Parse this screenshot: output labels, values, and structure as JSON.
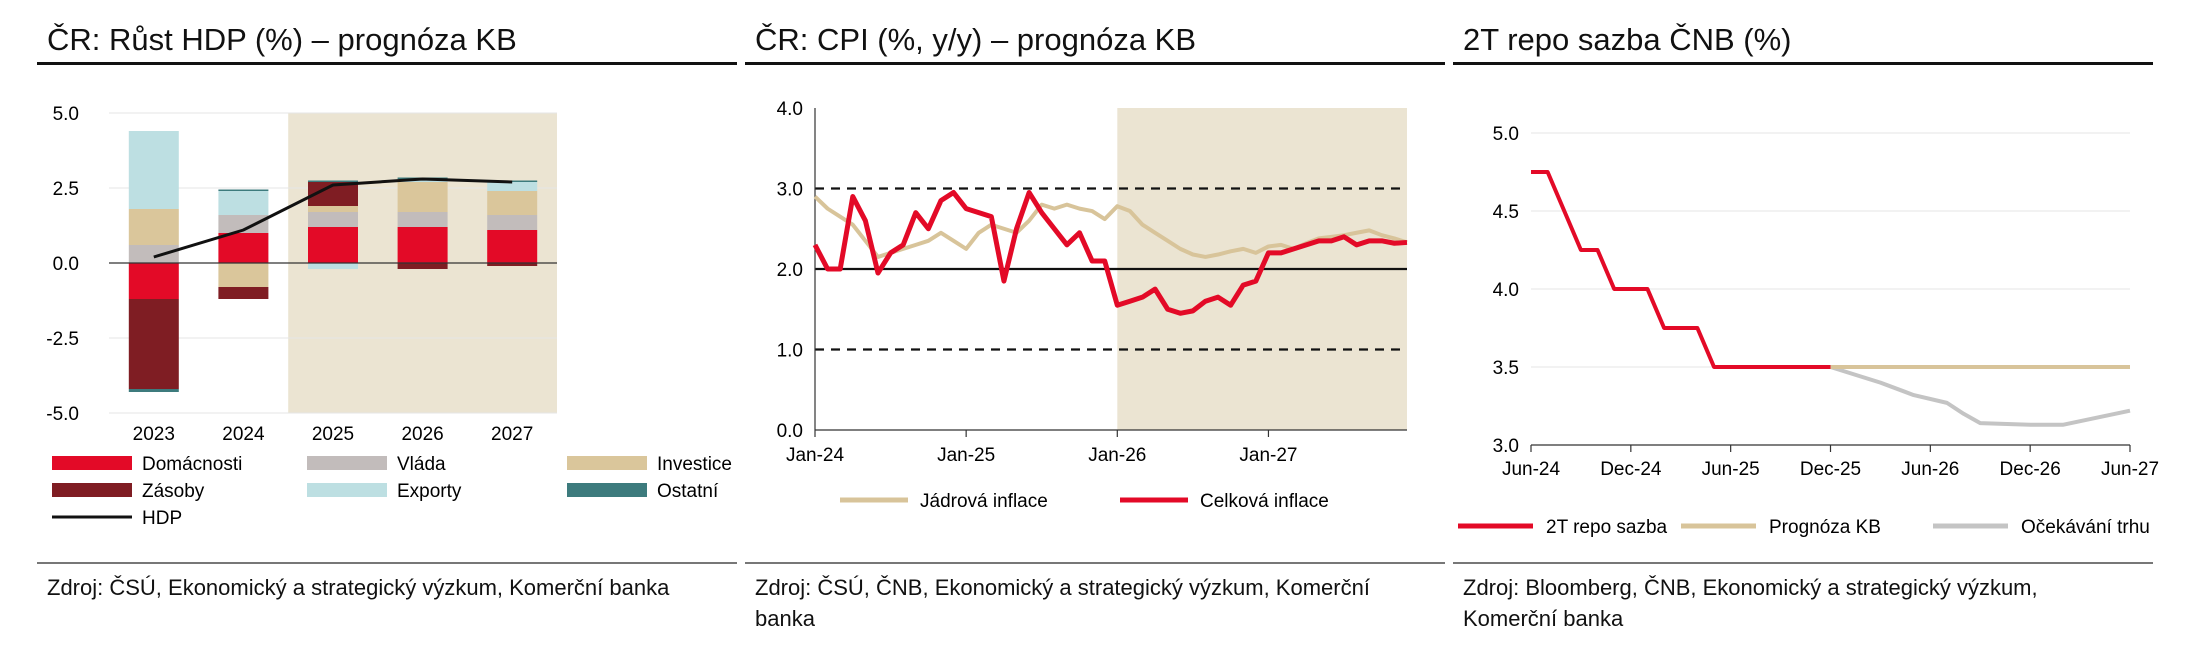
{
  "charts": [
    {
      "title": "ČR: Růst HDP (%) – prognóza KB",
      "source": "Zdroj: ČSÚ, Ekonomický a strategický výzkum, Komerční banka"
    },
    {
      "title": "ČR: CPI (%, y/y) – prognóza KB",
      "source": "Zdroj: ČSÚ, ČNB, Ekonomický a strategický výzkum, Komerční banka"
    },
    {
      "title": "2T repo sazba ČNB (%)",
      "source": "Zdroj: Bloomberg, ČNB, Ekonomický a strategický výzkum, Komerční banka"
    }
  ],
  "colors": {
    "domacnosti": "#e30a27",
    "vlada": "#c2bcbb",
    "investice": "#dac69b",
    "zasoby": "#7f1d23",
    "exporty": "#bddfe2",
    "ostatni": "#3d7b7d",
    "hdp": "#111111",
    "core": "#d8c49a",
    "headline": "#e30a27",
    "repo": "#e30a27",
    "forecast": "#d8c49a",
    "market": "#c4c4c4",
    "shade": "#ebe4d2"
  },
  "chart_data": [
    {
      "type": "bar",
      "stacked": true,
      "title": "ČR: Růst HDP (%) – prognóza KB",
      "categories": [
        "2023",
        "2024",
        "2025",
        "2026",
        "2027"
      ],
      "ylim": [
        -5.0,
        5.0
      ],
      "yticks": [
        "5.0",
        "2.5",
        "0.0",
        "-2.5",
        "-5.0"
      ],
      "shaded_from_category": "2025",
      "series": [
        {
          "name": "Domácnosti",
          "key": "domacnosti",
          "values": [
            -1.2,
            1.0,
            1.2,
            1.2,
            1.1
          ]
        },
        {
          "name": "Vláda",
          "key": "vlada",
          "values": [
            0.6,
            0.6,
            0.5,
            0.5,
            0.5
          ]
        },
        {
          "name": "Investice",
          "key": "investice",
          "values": [
            1.2,
            -0.8,
            0.2,
            1.0,
            0.8
          ]
        },
        {
          "name": "Zásoby",
          "key": "zasoby",
          "values": [
            -3.0,
            -0.4,
            0.8,
            -0.2,
            -0.1
          ]
        },
        {
          "name": "Exporty",
          "key": "exporty",
          "values": [
            2.6,
            0.8,
            -0.2,
            0.1,
            0.3
          ]
        },
        {
          "name": "Ostatní",
          "key": "ostatni",
          "values": [
            -0.1,
            0.05,
            0.05,
            0.05,
            0.05
          ]
        }
      ],
      "line": {
        "name": "HDP",
        "key": "hdp",
        "values": [
          0.2,
          1.1,
          2.6,
          2.8,
          2.7
        ]
      },
      "legend": [
        "Domácnosti",
        "Vláda",
        "Investice",
        "Zásoby",
        "Exporty",
        "Ostatní",
        "HDP"
      ]
    },
    {
      "type": "line",
      "title": "ČR: CPI (%, y/y) – prognóza KB",
      "ylim": [
        0.0,
        4.0
      ],
      "yticks": [
        "4.0",
        "3.0",
        "2.0",
        "1.0",
        "0.0"
      ],
      "x_ticks": [
        "Jan-24",
        "Jan-25",
        "Jan-26",
        "Jan-27"
      ],
      "x_start": "Jan-24",
      "x_end": "Dec-27",
      "shaded_from": "Jan-26",
      "reference_lines": [
        {
          "y": 3.0,
          "style": "dashed"
        },
        {
          "y": 2.0,
          "style": "solid"
        },
        {
          "y": 1.0,
          "style": "dashed"
        }
      ],
      "series": [
        {
          "name": "Jádrová inflace",
          "key": "core",
          "values": [
            2.9,
            2.75,
            2.65,
            2.55,
            2.35,
            2.15,
            2.2,
            2.25,
            2.3,
            2.35,
            2.45,
            2.35,
            2.25,
            2.45,
            2.55,
            2.5,
            2.45,
            2.6,
            2.8,
            2.75,
            2.8,
            2.75,
            2.72,
            2.62,
            2.78,
            2.72,
            2.55,
            2.45,
            2.35,
            2.25,
            2.18,
            2.15,
            2.18,
            2.22,
            2.25,
            2.2,
            2.28,
            2.3,
            2.25,
            2.32,
            2.38,
            2.4,
            2.42,
            2.45,
            2.48,
            2.42,
            2.38,
            2.33
          ]
        },
        {
          "name": "Celková inflace",
          "key": "headline",
          "values": [
            2.3,
            2.0,
            2.0,
            2.9,
            2.6,
            1.95,
            2.2,
            2.3,
            2.7,
            2.5,
            2.85,
            2.95,
            2.75,
            2.7,
            2.65,
            1.85,
            2.5,
            2.95,
            2.7,
            2.5,
            2.3,
            2.45,
            2.1,
            2.1,
            1.55,
            1.6,
            1.65,
            1.75,
            1.5,
            1.45,
            1.48,
            1.6,
            1.65,
            1.55,
            1.8,
            1.85,
            2.2,
            2.2,
            2.25,
            2.3,
            2.35,
            2.35,
            2.4,
            2.3,
            2.35,
            2.35,
            2.32,
            2.33
          ]
        }
      ],
      "legend": [
        "Jádrová inflace",
        "Celková inflace"
      ]
    },
    {
      "type": "line",
      "title": "2T repo sazba ČNB (%)",
      "ylim": [
        3.0,
        5.0
      ],
      "yticks": [
        "5.0",
        "4.5",
        "4.0",
        "3.5",
        "3.0"
      ],
      "x_ticks": [
        "Jun-24",
        "Dec-24",
        "Jun-25",
        "Dec-25",
        "Jun-26",
        "Dec-26",
        "Jun-27"
      ],
      "x_start": "Jun-24",
      "x_end": "Jun-27",
      "series": [
        {
          "name": "2T repo sazba",
          "key": "repo",
          "x": [
            "Jun-24",
            "Jul-24",
            "Aug-24",
            "Sep-24",
            "Oct-24",
            "Nov-24",
            "Dec-24",
            "Jan-25",
            "Feb-25",
            "Mar-25",
            "Apr-25",
            "May-25",
            "Jun-25",
            "Jul-25",
            "Aug-25",
            "Sep-25",
            "Oct-25",
            "Nov-25",
            "Dec-25"
          ],
          "values": [
            4.75,
            4.75,
            4.5,
            4.25,
            4.25,
            4.0,
            4.0,
            4.0,
            3.75,
            3.75,
            3.75,
            3.5,
            3.5,
            3.5,
            3.5,
            3.5,
            3.5,
            3.5,
            3.5
          ]
        },
        {
          "name": "Prognóza KB",
          "key": "forecast",
          "x": [
            "Dec-25",
            "Jun-27"
          ],
          "values": [
            3.5,
            3.5
          ]
        },
        {
          "name": "Očekávání trhu",
          "key": "market",
          "x": [
            "Dec-25",
            "Mar-26",
            "May-26",
            "Jul-26",
            "Aug-26",
            "Sep-26",
            "Dec-26",
            "Feb-27",
            "Jun-27"
          ],
          "values": [
            3.5,
            3.4,
            3.32,
            3.27,
            3.2,
            3.14,
            3.13,
            3.13,
            3.22
          ]
        }
      ],
      "legend": [
        "2T repo sazba",
        "Prognóza KB",
        "Očekávání trhu"
      ]
    }
  ]
}
